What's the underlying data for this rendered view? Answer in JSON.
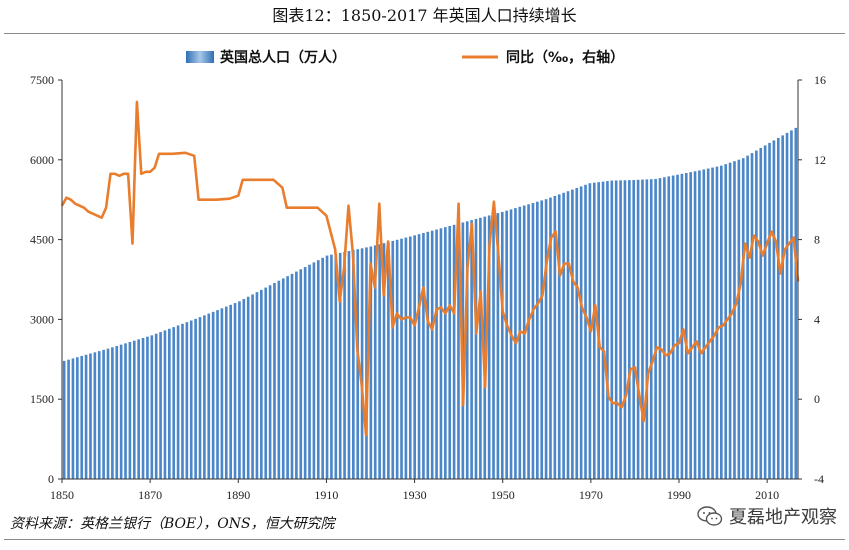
{
  "title": "图表12：1850-2017 年英国人口持续增长",
  "source": "资料来源：英格兰银行（BOE），ONS，恒大研究院",
  "watermark": "夏磊地产观察",
  "colors": {
    "bar": "#4a86c8",
    "line": "#e97d2e",
    "axis": "#333333"
  },
  "chart_data": {
    "type": "bar+line",
    "title": "",
    "xlabel": "",
    "ylabel": "",
    "y2label": "",
    "legend_position": "top-center",
    "x_ticks": [
      1850,
      1870,
      1890,
      1910,
      1930,
      1950,
      1970,
      1990,
      2010
    ],
    "xlim": [
      1850,
      2017
    ],
    "ylim": [
      0,
      7500
    ],
    "y_ticks": [
      0,
      1500,
      3000,
      4500,
      6000,
      7500
    ],
    "y2lim": [
      -4,
      16
    ],
    "y2_ticks": [
      -4,
      0,
      4,
      8,
      12,
      16
    ],
    "series": [
      {
        "name": "英国总人口（万人）",
        "type": "bar",
        "axis": "left",
        "anchors": [
          [
            1850,
            2220
          ],
          [
            1860,
            2450
          ],
          [
            1870,
            2700
          ],
          [
            1880,
            3010
          ],
          [
            1890,
            3340
          ],
          [
            1900,
            3770
          ],
          [
            1910,
            4200
          ],
          [
            1920,
            4370
          ],
          [
            1930,
            4580
          ],
          [
            1940,
            4800
          ],
          [
            1950,
            5020
          ],
          [
            1960,
            5260
          ],
          [
            1970,
            5560
          ],
          [
            1975,
            5610
          ],
          [
            1980,
            5620
          ],
          [
            1985,
            5640
          ],
          [
            1990,
            5720
          ],
          [
            1995,
            5800
          ],
          [
            2000,
            5890
          ],
          [
            2005,
            6030
          ],
          [
            2010,
            6270
          ],
          [
            2017,
            6600
          ]
        ]
      },
      {
        "name": "同比（‰，右轴）",
        "type": "line",
        "axis": "right",
        "points": [
          [
            1850,
            9.7
          ],
          [
            1851,
            10.1
          ],
          [
            1852,
            10.0
          ],
          [
            1853,
            9.8
          ],
          [
            1854,
            9.7
          ],
          [
            1855,
            9.6
          ],
          [
            1856,
            9.4
          ],
          [
            1857,
            9.3
          ],
          [
            1858,
            9.2
          ],
          [
            1859,
            9.1
          ],
          [
            1860,
            9.6
          ],
          [
            1861,
            11.3
          ],
          [
            1862,
            11.3
          ],
          [
            1863,
            11.2
          ],
          [
            1864,
            11.3
          ],
          [
            1865,
            11.3
          ],
          [
            1866,
            7.8
          ],
          [
            1867,
            14.9
          ],
          [
            1868,
            11.3
          ],
          [
            1869,
            11.4
          ],
          [
            1870,
            11.4
          ],
          [
            1871,
            11.6
          ],
          [
            1872,
            12.3
          ],
          [
            1873,
            12.3
          ],
          [
            1875,
            12.3
          ],
          [
            1878,
            12.35
          ],
          [
            1880,
            12.2
          ],
          [
            1881,
            10.0
          ],
          [
            1882,
            10.0
          ],
          [
            1885,
            10.0
          ],
          [
            1888,
            10.05
          ],
          [
            1890,
            10.2
          ],
          [
            1891,
            11.0
          ],
          [
            1892,
            11.0
          ],
          [
            1895,
            11.0
          ],
          [
            1898,
            11.0
          ],
          [
            1900,
            10.6
          ],
          [
            1901,
            9.6
          ],
          [
            1902,
            9.6
          ],
          [
            1905,
            9.6
          ],
          [
            1908,
            9.6
          ],
          [
            1910,
            9.2
          ],
          [
            1912,
            7.5
          ],
          [
            1913,
            4.9
          ],
          [
            1914,
            6.6
          ],
          [
            1915,
            9.7
          ],
          [
            1916,
            7.3
          ],
          [
            1917,
            2.5
          ],
          [
            1918,
            0.7
          ],
          [
            1919,
            -1.8
          ],
          [
            1920,
            6.8
          ],
          [
            1921,
            5.6
          ],
          [
            1922,
            9.8
          ],
          [
            1923,
            5.2
          ],
          [
            1924,
            7.9
          ],
          [
            1925,
            3.6
          ],
          [
            1926,
            4.3
          ],
          [
            1927,
            4.0
          ],
          [
            1928,
            4.1
          ],
          [
            1929,
            4.1
          ],
          [
            1930,
            3.7
          ],
          [
            1931,
            4.6
          ],
          [
            1932,
            5.6
          ],
          [
            1933,
            3.9
          ],
          [
            1934,
            3.5
          ],
          [
            1935,
            4.5
          ],
          [
            1936,
            4.6
          ],
          [
            1937,
            4.3
          ],
          [
            1938,
            4.7
          ],
          [
            1939,
            4.3
          ],
          [
            1940,
            9.8
          ],
          [
            1941,
            -0.3
          ],
          [
            1942,
            6.6
          ],
          [
            1943,
            8.8
          ],
          [
            1944,
            3.3
          ],
          [
            1945,
            5.4
          ],
          [
            1946,
            0.6
          ],
          [
            1947,
            7.7
          ],
          [
            1948,
            9.9
          ],
          [
            1949,
            7.3
          ],
          [
            1950,
            4.4
          ],
          [
            1951,
            3.7
          ],
          [
            1952,
            3.2
          ],
          [
            1953,
            2.8
          ],
          [
            1954,
            3.4
          ],
          [
            1955,
            3.3
          ],
          [
            1956,
            4.0
          ],
          [
            1957,
            4.5
          ],
          [
            1958,
            4.8
          ],
          [
            1959,
            5.2
          ],
          [
            1960,
            6.9
          ],
          [
            1961,
            8.1
          ],
          [
            1962,
            8.4
          ],
          [
            1963,
            6.2
          ],
          [
            1964,
            6.8
          ],
          [
            1965,
            6.8
          ],
          [
            1966,
            5.9
          ],
          [
            1967,
            5.6
          ],
          [
            1968,
            4.6
          ],
          [
            1969,
            4.1
          ],
          [
            1970,
            3.4
          ],
          [
            1971,
            4.7
          ],
          [
            1972,
            2.6
          ],
          [
            1973,
            2.4
          ],
          [
            1974,
            0.1
          ],
          [
            1975,
            -0.2
          ],
          [
            1976,
            -0.2
          ],
          [
            1977,
            -0.4
          ],
          [
            1978,
            0.2
          ],
          [
            1979,
            1.5
          ],
          [
            1980,
            1.6
          ],
          [
            1981,
            0.2
          ],
          [
            1982,
            -1.1
          ],
          [
            1983,
            1.3
          ],
          [
            1984,
            1.9
          ],
          [
            1985,
            2.6
          ],
          [
            1986,
            2.5
          ],
          [
            1987,
            2.2
          ],
          [
            1988,
            2.3
          ],
          [
            1989,
            2.7
          ],
          [
            1990,
            2.8
          ],
          [
            1991,
            3.5
          ],
          [
            1992,
            2.3
          ],
          [
            1993,
            2.6
          ],
          [
            1994,
            2.9
          ],
          [
            1995,
            2.3
          ],
          [
            1996,
            2.6
          ],
          [
            1997,
            2.9
          ],
          [
            1998,
            3.2
          ],
          [
            1999,
            3.6
          ],
          [
            2000,
            3.7
          ],
          [
            2001,
            4.0
          ],
          [
            2002,
            4.3
          ],
          [
            2003,
            4.8
          ],
          [
            2004,
            5.8
          ],
          [
            2005,
            7.8
          ],
          [
            2006,
            7.1
          ],
          [
            2007,
            8.2
          ],
          [
            2008,
            7.9
          ],
          [
            2009,
            7.2
          ],
          [
            2010,
            7.8
          ],
          [
            2011,
            8.4
          ],
          [
            2012,
            7.9
          ],
          [
            2013,
            6.3
          ],
          [
            2014,
            7.5
          ],
          [
            2015,
            7.8
          ],
          [
            2016,
            8.1
          ],
          [
            2017,
            5.9
          ]
        ]
      }
    ]
  }
}
